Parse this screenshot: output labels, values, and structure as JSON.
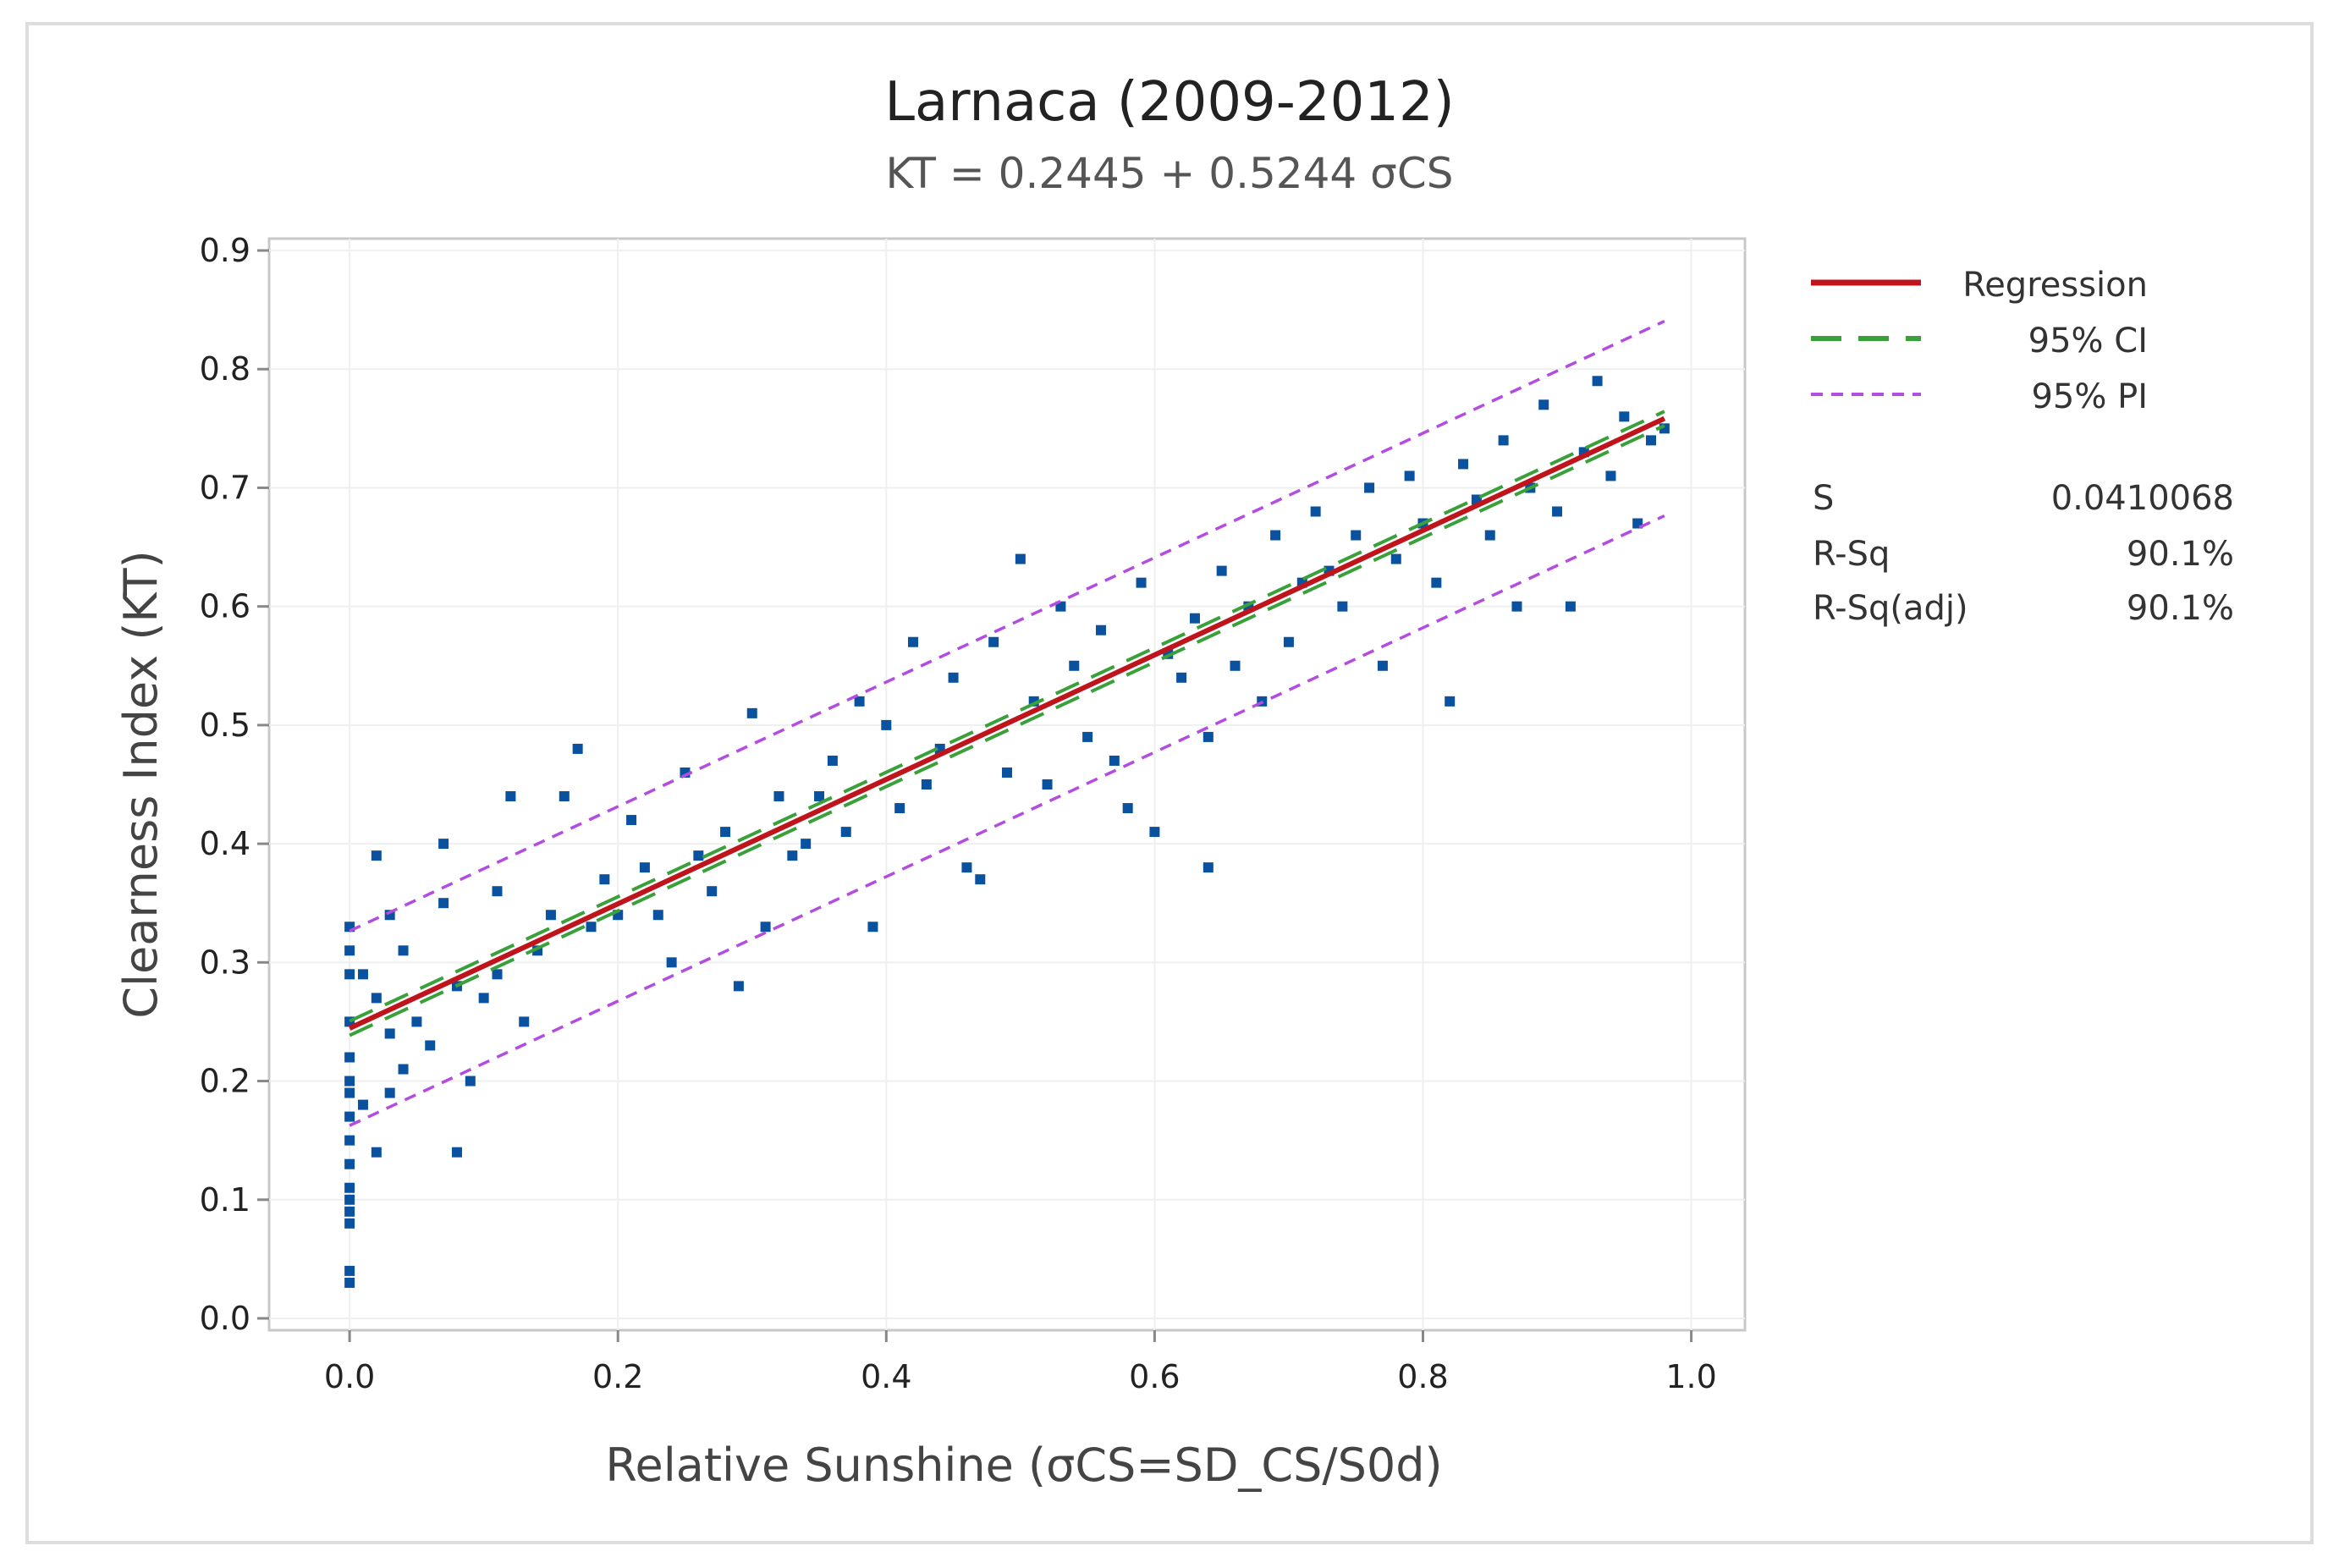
{
  "chart_data": {
    "type": "scatter",
    "title": "Larnaca (2009-2012)",
    "subtitle": "KT = 0.2445 + 0.5244 σCS",
    "xlabel": "Relative Sunshine (σCS=SD_CS/S0d)",
    "ylabel": "Clearness Index (KT)",
    "xlim": [
      -0.06,
      1.04
    ],
    "ylim": [
      -0.01,
      0.91
    ],
    "x_ticks": [
      0.0,
      0.2,
      0.4,
      0.6,
      0.8,
      1.0
    ],
    "x_tick_labels": [
      "0.0",
      "0.2",
      "0.4",
      "0.6",
      "0.8",
      "1.0"
    ],
    "y_ticks": [
      0.0,
      0.1,
      0.2,
      0.3,
      0.4,
      0.5,
      0.6,
      0.7,
      0.8,
      0.9
    ],
    "y_tick_labels": [
      "0.0",
      "0.1",
      "0.2",
      "0.3",
      "0.4",
      "0.5",
      "0.6",
      "0.7",
      "0.8",
      "0.9"
    ],
    "grid": true,
    "regression": {
      "intercept": 0.2445,
      "slope": 0.5244,
      "x_range": [
        0.0,
        0.98
      ]
    },
    "ci_halfwidth": 0.006,
    "pi_halfwidth": 0.082,
    "legend": {
      "placement": "right",
      "items": [
        {
          "label": "Regression",
          "color": "#c0141c",
          "style": "solid"
        },
        {
          "label": "95% CI",
          "color": "#3aa03a",
          "style": "dashed"
        },
        {
          "label": "95% PI",
          "color": "#b34ce0",
          "style": "dotted"
        }
      ]
    },
    "stats": [
      {
        "label": "S",
        "value": "0.0410068"
      },
      {
        "label": "R-Sq",
        "value": "90.1%"
      },
      {
        "label": "R-Sq(adj)",
        "value": "90.1%"
      }
    ],
    "point_color": "#0a52a0",
    "points": [
      [
        0.0,
        0.03
      ],
      [
        0.0,
        0.04
      ],
      [
        0.0,
        0.08
      ],
      [
        0.0,
        0.09
      ],
      [
        0.0,
        0.1
      ],
      [
        0.0,
        0.11
      ],
      [
        0.0,
        0.13
      ],
      [
        0.0,
        0.15
      ],
      [
        0.0,
        0.17
      ],
      [
        0.0,
        0.19
      ],
      [
        0.0,
        0.2
      ],
      [
        0.0,
        0.22
      ],
      [
        0.0,
        0.25
      ],
      [
        0.0,
        0.29
      ],
      [
        0.0,
        0.31
      ],
      [
        0.0,
        0.33
      ],
      [
        0.01,
        0.29
      ],
      [
        0.01,
        0.18
      ],
      [
        0.02,
        0.39
      ],
      [
        0.02,
        0.27
      ],
      [
        0.02,
        0.14
      ],
      [
        0.03,
        0.34
      ],
      [
        0.03,
        0.19
      ],
      [
        0.03,
        0.24
      ],
      [
        0.04,
        0.31
      ],
      [
        0.04,
        0.21
      ],
      [
        0.05,
        0.25
      ],
      [
        0.06,
        0.23
      ],
      [
        0.07,
        0.4
      ],
      [
        0.07,
        0.35
      ],
      [
        0.08,
        0.28
      ],
      [
        0.08,
        0.14
      ],
      [
        0.09,
        0.2
      ],
      [
        0.1,
        0.27
      ],
      [
        0.11,
        0.29
      ],
      [
        0.11,
        0.36
      ],
      [
        0.12,
        0.44
      ],
      [
        0.13,
        0.25
      ],
      [
        0.14,
        0.31
      ],
      [
        0.15,
        0.34
      ],
      [
        0.16,
        0.44
      ],
      [
        0.17,
        0.48
      ],
      [
        0.18,
        0.33
      ],
      [
        0.19,
        0.37
      ],
      [
        0.2,
        0.34
      ],
      [
        0.21,
        0.42
      ],
      [
        0.22,
        0.38
      ],
      [
        0.23,
        0.34
      ],
      [
        0.24,
        0.3
      ],
      [
        0.25,
        0.46
      ],
      [
        0.26,
        0.39
      ],
      [
        0.27,
        0.36
      ],
      [
        0.28,
        0.41
      ],
      [
        0.29,
        0.28
      ],
      [
        0.3,
        0.51
      ],
      [
        0.31,
        0.33
      ],
      [
        0.32,
        0.44
      ],
      [
        0.33,
        0.39
      ],
      [
        0.34,
        0.4
      ],
      [
        0.35,
        0.44
      ],
      [
        0.36,
        0.47
      ],
      [
        0.37,
        0.41
      ],
      [
        0.38,
        0.52
      ],
      [
        0.39,
        0.33
      ],
      [
        0.4,
        0.5
      ],
      [
        0.41,
        0.43
      ],
      [
        0.42,
        0.57
      ],
      [
        0.43,
        0.45
      ],
      [
        0.44,
        0.48
      ],
      [
        0.45,
        0.54
      ],
      [
        0.46,
        0.38
      ],
      [
        0.47,
        0.37
      ],
      [
        0.48,
        0.57
      ],
      [
        0.49,
        0.46
      ],
      [
        0.5,
        0.64
      ],
      [
        0.51,
        0.52
      ],
      [
        0.52,
        0.45
      ],
      [
        0.53,
        0.6
      ],
      [
        0.54,
        0.55
      ],
      [
        0.55,
        0.49
      ],
      [
        0.56,
        0.58
      ],
      [
        0.57,
        0.47
      ],
      [
        0.58,
        0.43
      ],
      [
        0.59,
        0.62
      ],
      [
        0.6,
        0.41
      ],
      [
        0.61,
        0.56
      ],
      [
        0.62,
        0.54
      ],
      [
        0.63,
        0.59
      ],
      [
        0.64,
        0.49
      ],
      [
        0.64,
        0.38
      ],
      [
        0.65,
        0.63
      ],
      [
        0.66,
        0.55
      ],
      [
        0.67,
        0.6
      ],
      [
        0.68,
        0.52
      ],
      [
        0.69,
        0.66
      ],
      [
        0.7,
        0.57
      ],
      [
        0.71,
        0.62
      ],
      [
        0.72,
        0.68
      ],
      [
        0.73,
        0.63
      ],
      [
        0.74,
        0.6
      ],
      [
        0.75,
        0.66
      ],
      [
        0.76,
        0.7
      ],
      [
        0.77,
        0.55
      ],
      [
        0.78,
        0.64
      ],
      [
        0.79,
        0.71
      ],
      [
        0.8,
        0.67
      ],
      [
        0.81,
        0.62
      ],
      [
        0.82,
        0.52
      ],
      [
        0.83,
        0.72
      ],
      [
        0.84,
        0.69
      ],
      [
        0.85,
        0.66
      ],
      [
        0.86,
        0.74
      ],
      [
        0.87,
        0.6
      ],
      [
        0.88,
        0.7
      ],
      [
        0.89,
        0.77
      ],
      [
        0.9,
        0.68
      ],
      [
        0.91,
        0.6
      ],
      [
        0.92,
        0.73
      ],
      [
        0.93,
        0.79
      ],
      [
        0.94,
        0.71
      ],
      [
        0.95,
        0.76
      ],
      [
        0.96,
        0.67
      ],
      [
        0.97,
        0.74
      ],
      [
        0.98,
        0.75
      ]
    ]
  }
}
